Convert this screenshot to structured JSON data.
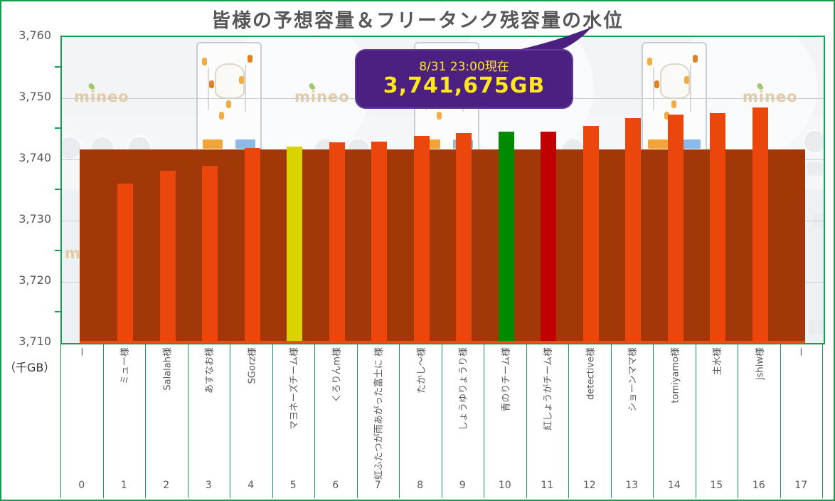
{
  "title": "皆様の予想容量＆フリータンク残容量の水位",
  "callout": {
    "line1": "8/31 23:00現在",
    "line2": "3,741,675GB"
  },
  "y_axis": {
    "unit_label": "（千GB）",
    "tick_labels": [
      "3,760",
      "3,750",
      "3,740",
      "3,730",
      "3,720",
      "3,710"
    ],
    "tick_values": [
      3760,
      3750,
      3740,
      3730,
      3720,
      3710
    ],
    "minor_tick_values": [
      3755,
      3745,
      3735,
      3725,
      3715
    ]
  },
  "background": {
    "brand_text": "mineo"
  },
  "colors": {
    "border_green": "#17a052",
    "bar_orange": "#eb470c",
    "bar_yellow": "#d9d400",
    "bar_green": "#008a00",
    "bar_darkred": "#c00000",
    "water_band": "#a23708",
    "axis_line_orange": "#e8500e",
    "callout_purple": "#4b2080",
    "callout_text_yellow": "#ffe81a",
    "text_gray": "#595959",
    "brand_tan": "#e3cba3"
  },
  "chart_data": {
    "type": "bar",
    "title": "皆様の予想容量＆フリータンク残容量の水位",
    "ylabel": "（千GB）",
    "ylim": [
      3710,
      3760
    ],
    "grid": "horizontal major gridlines, minor ticks every 5",
    "legend": "none",
    "water_level": {
      "label": "8/31 23:00現在",
      "value_gb_text": "3,741,675GB",
      "value_thousand_gb": 3741.675,
      "note": "dark rust horizontal band from 3710 up to current free-tank level"
    },
    "categories": [
      "0",
      "1",
      "2",
      "3",
      "4",
      "5",
      "6",
      "7",
      "8",
      "9",
      "10",
      "11",
      "12",
      "13",
      "14",
      "15",
      "16",
      "17"
    ],
    "names": [
      "ー",
      "ミュー様",
      "Salalah様",
      "あすなお様",
      "SGorz様",
      "マヨネーズチーム様",
      "くろりんm様",
      "虹ふたつが雨あがった富士に 様",
      "たかし～様",
      "しょうゆりょうり様",
      "青のりチーム様",
      "紅しょうがチーム様",
      "detective様",
      "ショーンママ様",
      "tomiyamo様",
      "主水様",
      "jshiw様",
      "ー"
    ],
    "values": [
      null,
      3736.0,
      3738.2,
      3739.0,
      3741.9,
      3742.1,
      3742.8,
      3742.9,
      3743.9,
      3744.3,
      3744.5,
      3744.5,
      3745.5,
      3746.8,
      3747.3,
      3747.6,
      3748.5,
      null
    ],
    "bar_color_keys": [
      null,
      "bar_orange",
      "bar_orange",
      "bar_orange",
      "bar_orange",
      "bar_yellow",
      "bar_orange",
      "bar_orange",
      "bar_orange",
      "bar_orange",
      "bar_green",
      "bar_darkred",
      "bar_orange",
      "bar_orange",
      "bar_orange",
      "bar_orange",
      "bar_orange",
      null
    ]
  }
}
